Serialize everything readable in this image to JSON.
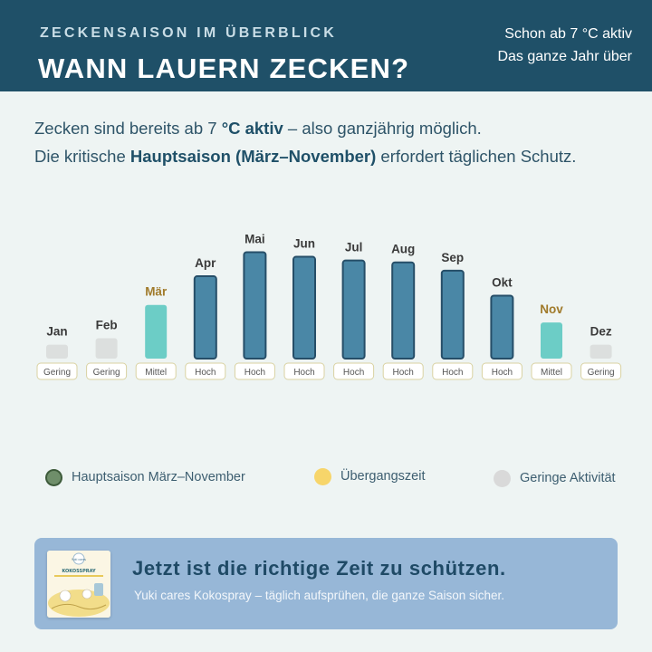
{
  "header": {
    "kicker": "ZECKENSAISON IM ÜBERBLICK",
    "title": "WANN LAUERN ZECKEN?",
    "badge_line1": "Schon ab 7 °C aktiv",
    "badge_line2": "Das ganze Jahr über"
  },
  "intro": {
    "line1_a": "Zecken sind bereits ab 7 ",
    "line1_b": "°C aktiv",
    "line1_c": " – also ganzjährig möglich.",
    "line2_a": "Die kritische ",
    "line2_b": "Hauptsaison (März–November)",
    "line2_c": " erfordert täglichen Schutz."
  },
  "chart_data": {
    "type": "bar",
    "categories": [
      "Jan",
      "Feb",
      "Mär",
      "Apr",
      "Mai",
      "Jun",
      "Jul",
      "Aug",
      "Sep",
      "Okt",
      "Nov",
      "Dez"
    ],
    "values": [
      15,
      22,
      58,
      89,
      115,
      110,
      106,
      104,
      95,
      68,
      39,
      15
    ],
    "levels": [
      "Gering",
      "Gering",
      "Mittel",
      "Hoch",
      "Hoch",
      "Hoch",
      "Hoch",
      "Hoch",
      "Hoch",
      "Hoch",
      "Mittel",
      "Gering"
    ],
    "ylim": [
      0,
      135
    ],
    "highlight_months": [
      "Mär",
      "Nov"
    ],
    "colors": {
      "Hoch": "#4a87a6",
      "Mittel": "#6ccdc6",
      "Gering": "#dcdfde",
      "hoch_border": "#264e68",
      "month_text": "#3a3a3a",
      "month_highlight": "#a07a2a",
      "pill_border": "#d9d2a2",
      "pill_text": "#555555"
    }
  },
  "legend": [
    {
      "label": "Hauptsaison März–November",
      "color": "#6f8e6a",
      "ring": "#3d5a3a"
    },
    {
      "label": "Übergangszeit",
      "color": "#f7d56a",
      "ring": "#f7d56a"
    },
    {
      "label": "Geringe Aktivität",
      "color": "#d9d9d9",
      "ring": "#d9d9d9"
    }
  ],
  "banner": {
    "title": "Jetzt ist die richtige Zeit zu schützen.",
    "text": "Yuki cares Kokospray – täglich aufsprühen, die ganze Saison sicher.",
    "product_brand": "Yuki cares",
    "product_name": "KOKOSSPRAY"
  }
}
